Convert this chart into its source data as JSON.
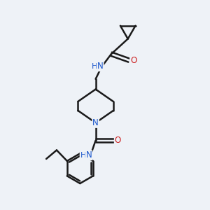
{
  "background_color": "#eef2f7",
  "line_color": "#1a1a1a",
  "bond_width": 1.8,
  "atom_colors": {
    "N": "#1a56cc",
    "O": "#cc2020",
    "C": "#1a1a1a"
  },
  "font_size_atom": 8.5,
  "figsize": [
    3.0,
    3.0
  ],
  "dpi": 100
}
